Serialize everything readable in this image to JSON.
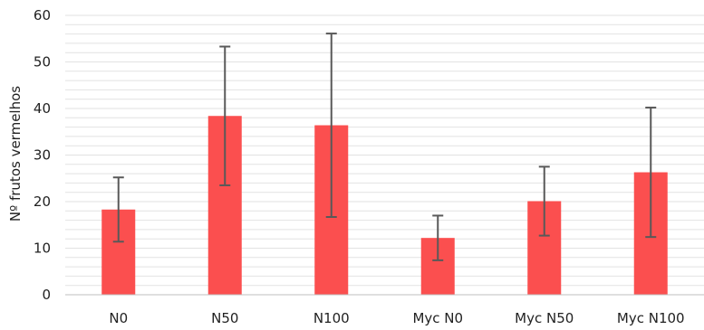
{
  "chart_data": {
    "type": "bar",
    "title": "",
    "xlabel": "",
    "ylabel": "Nº frutos vermelhos",
    "ylim": [
      0,
      60
    ],
    "yticks": [
      0,
      10,
      20,
      30,
      40,
      50,
      60
    ],
    "minor_grid_step": 2,
    "grid": true,
    "legend": "none",
    "categories": [
      "N0",
      "N50",
      "N100",
      "Myc N0",
      "Myc N50",
      "Myc N100"
    ],
    "values": [
      18.3,
      38.4,
      36.4,
      12.2,
      20.1,
      26.3
    ],
    "error_low": [
      11.4,
      23.5,
      16.7,
      7.4,
      12.7,
      12.4
    ],
    "error_high": [
      25.2,
      53.3,
      56.1,
      17.0,
      27.5,
      40.2
    ],
    "colors": {
      "bar": "#fb4f4f",
      "error": "#595959",
      "grid": "#e2e2e2",
      "axis": "#bfbfbf"
    }
  }
}
